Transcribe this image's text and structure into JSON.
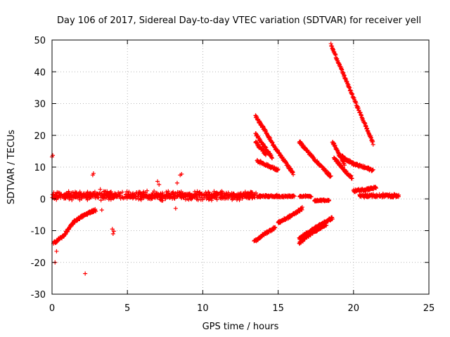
{
  "chart_data": {
    "type": "scatter",
    "title": "Day 106 of 2017, Sidereal Day-to-day VTEC variation (SDTVAR) for receiver yell",
    "xlabel": "GPS time / hours",
    "ylabel": "SDTVAR / TECUs",
    "xlim": [
      0,
      25
    ],
    "ylim": [
      -30,
      50
    ],
    "xticks": [
      0,
      5,
      10,
      15,
      20,
      25
    ],
    "yticks": [
      -30,
      -20,
      -10,
      0,
      10,
      20,
      30,
      40,
      50
    ],
    "xtick_labels": [
      "0",
      "5",
      "10",
      "15",
      "20",
      "25"
    ],
    "ytick_labels": [
      "-30",
      "-20",
      "-10",
      "0",
      "10",
      "20",
      "30",
      "40",
      "50"
    ],
    "grid": true,
    "marker": "+",
    "color": "#ff0000",
    "series": [
      {
        "name": "near-zero band",
        "kind": "noise",
        "x": [
          0.0,
          13.6
        ],
        "y_center": 1.0,
        "y_spread": 1.8
      },
      {
        "name": "tail 13.6-16",
        "kind": "noise",
        "x": [
          13.6,
          16.1
        ],
        "y_center": 0.8,
        "y_spread": 0.5
      },
      {
        "name": "tail 16.4-17.2",
        "kind": "noise",
        "x": [
          16.4,
          17.2
        ],
        "y_center": 0.8,
        "y_spread": 0.4
      },
      {
        "name": "tail 17.4-18.4",
        "kind": "noise",
        "x": [
          17.4,
          18.4
        ],
        "y_center": -0.5,
        "y_spread": 0.4
      },
      {
        "name": "tail 20.4-23",
        "kind": "noise",
        "x": [
          20.4,
          23.0
        ],
        "y_center": 1.0,
        "y_spread": 0.8
      },
      {
        "name": "arc 0.1-0.7",
        "kind": "arc",
        "x": [
          0.1,
          0.5,
          0.7
        ],
        "y": [
          -14.0,
          -12.5,
          -12.0
        ]
      },
      {
        "name": "arc 0.7-1.5",
        "kind": "arc",
        "x": [
          0.7,
          1.1,
          1.5
        ],
        "y": [
          -12.0,
          -9.5,
          -7.0
        ]
      },
      {
        "name": "arc 1.5-2.4",
        "kind": "arc",
        "x": [
          1.5,
          2.0,
          2.4
        ],
        "y": [
          -7.0,
          -5.5,
          -4.5
        ]
      },
      {
        "name": "arc 2.4-2.9",
        "kind": "arc",
        "x": [
          2.4,
          2.6,
          2.9
        ],
        "y": [
          -4.5,
          -4.0,
          -3.5
        ]
      },
      {
        "name": "arc 13.5-14.8",
        "kind": "arc",
        "x": [
          13.5,
          14.2,
          14.8
        ],
        "y": [
          26.0,
          21.0,
          16.0
        ]
      },
      {
        "name": "arc 13.5-14.6",
        "kind": "arc",
        "x": [
          13.5,
          14.0,
          14.6
        ],
        "y": [
          20.5,
          17.0,
          13.0
        ]
      },
      {
        "name": "arc 13.5-14.2",
        "kind": "arc",
        "x": [
          13.5,
          13.8,
          14.2
        ],
        "y": [
          18.0,
          16.0,
          14.0
        ]
      },
      {
        "name": "arc 13.6-15",
        "kind": "arc",
        "x": [
          13.6,
          14.3,
          15.0
        ],
        "y": [
          12.0,
          10.5,
          9.0
        ]
      },
      {
        "name": "arc 14.8-16.0",
        "kind": "arc",
        "x": [
          14.8,
          15.4,
          16.0
        ],
        "y": [
          16.0,
          12.0,
          8.0
        ]
      },
      {
        "name": "arc 13.4-14.8",
        "kind": "arc",
        "x": [
          13.4,
          14.1,
          14.8
        ],
        "y": [
          -13.5,
          -11.0,
          -9.0
        ]
      },
      {
        "name": "arc 15.0-16.6",
        "kind": "arc",
        "x": [
          15.0,
          15.8,
          16.6
        ],
        "y": [
          -7.5,
          -5.5,
          -3.0
        ]
      },
      {
        "name": "arc 16.4-18.5",
        "kind": "arc",
        "x": [
          16.4,
          17.4,
          18.5
        ],
        "y": [
          18.0,
          12.5,
          7.0
        ]
      },
      {
        "name": "arc 16.4-18.6",
        "kind": "arc",
        "x": [
          16.4,
          17.5,
          18.6
        ],
        "y": [
          -12.5,
          -9.0,
          -6.0
        ]
      },
      {
        "name": "arc 16.4-18.2",
        "kind": "arc",
        "x": [
          16.4,
          17.3,
          18.2
        ],
        "y": [
          -14.0,
          -10.5,
          -8.0
        ]
      },
      {
        "name": "arc 18.5-21.3",
        "kind": "arc",
        "x": [
          18.5,
          19.8,
          21.3
        ],
        "y": [
          48.5,
          34.0,
          17.5
        ]
      },
      {
        "name": "arc 18.6-19.4",
        "kind": "arc",
        "x": [
          18.6,
          19.0,
          19.4
        ],
        "y": [
          18.0,
          14.5,
          11.0
        ]
      },
      {
        "name": "arc 18.7-19.9",
        "kind": "arc",
        "x": [
          18.7,
          19.3,
          19.9
        ],
        "y": [
          13.0,
          9.5,
          6.5
        ]
      },
      {
        "name": "arc 19.0-21.3",
        "kind": "arc",
        "x": [
          19.0,
          20.0,
          21.3
        ],
        "y": [
          14.0,
          11.0,
          9.0
        ]
      },
      {
        "name": "arc 20.0-21.5",
        "kind": "arc",
        "x": [
          20.0,
          20.8,
          21.5
        ],
        "y": [
          2.5,
          3.0,
          3.5
        ]
      },
      {
        "name": "outliers",
        "kind": "points",
        "x": [
          0.05,
          0.0,
          0.2,
          0.3,
          2.2,
          2.7,
          2.75,
          3.2,
          3.3,
          4.0,
          4.05,
          4.1,
          7.0,
          7.1,
          8.5,
          8.6,
          8.2,
          8.3
        ],
        "y": [
          13.7,
          13.2,
          -20.0,
          -16.5,
          -23.5,
          7.5,
          8.0,
          3.0,
          -3.5,
          -9.5,
          -11.0,
          -10.2,
          5.5,
          4.5,
          7.5,
          7.8,
          -3.0,
          5.0
        ]
      }
    ]
  }
}
